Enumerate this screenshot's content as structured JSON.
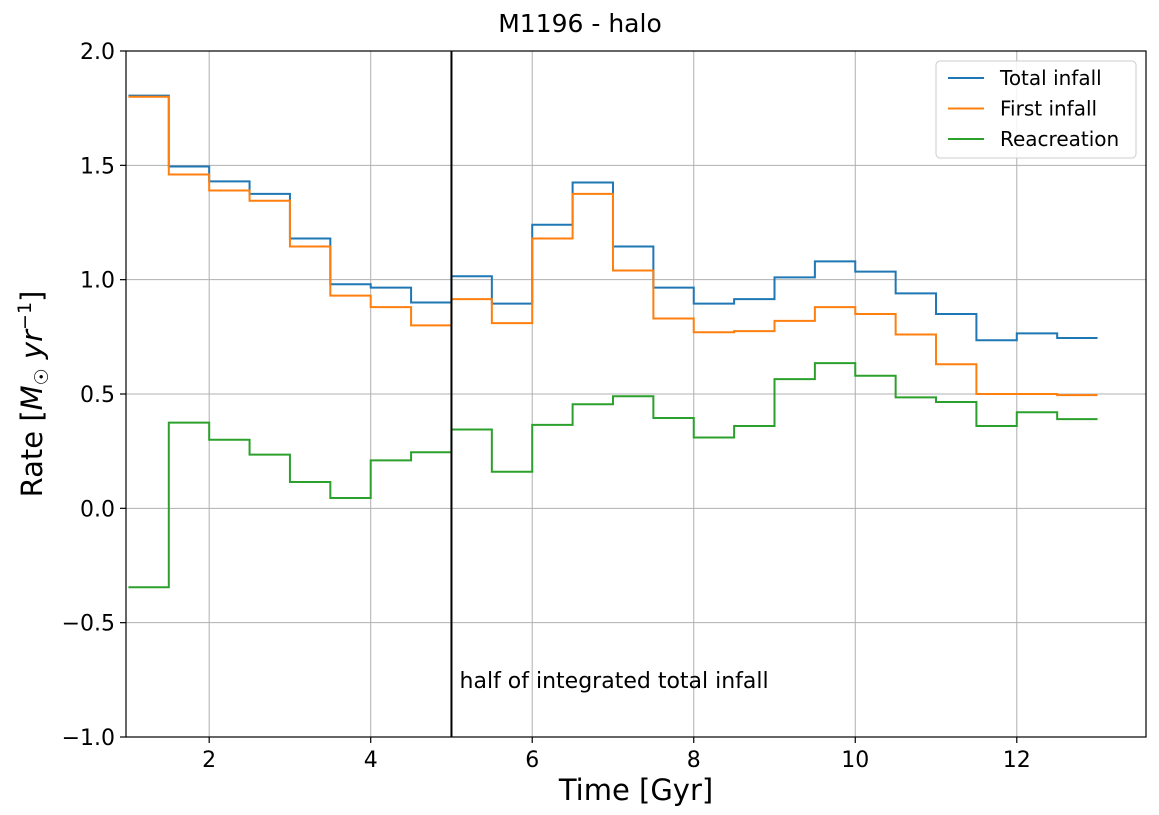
{
  "chart_data": {
    "type": "line",
    "step": "post",
    "title": "M1196 - halo",
    "xlabel": "Time [Gyr]",
    "ylabel": "Rate [M☉ yr⁻¹]",
    "ylabel_parts": {
      "prefix": "Rate [",
      "symbol": "M",
      "sub": "☉",
      "unit": " yr",
      "sup": "−1",
      "suffix": "]"
    },
    "xlim": [
      0.97,
      13.6
    ],
    "ylim": [
      -1.0,
      2.0
    ],
    "xticks": [
      2,
      4,
      6,
      8,
      10,
      12
    ],
    "xtick_labels": [
      "2",
      "4",
      "6",
      "8",
      "10",
      "12"
    ],
    "yticks": [
      -1.0,
      -0.5,
      0.0,
      0.5,
      1.0,
      1.5,
      2.0
    ],
    "ytick_labels": [
      "−1.0",
      "−0.5",
      "0.0",
      "0.5",
      "1.0",
      "1.5",
      "2.0"
    ],
    "grid": true,
    "legend_position": "top-right",
    "x": [
      1.0,
      1.5,
      2.0,
      2.5,
      3.0,
      3.5,
      4.0,
      4.5,
      5.0,
      5.5,
      6.0,
      6.5,
      7.0,
      7.5,
      8.0,
      8.5,
      9.0,
      9.5,
      10.0,
      10.5,
      11.0,
      11.5,
      12.0,
      12.5,
      13.0
    ],
    "series": [
      {
        "name": "Total infall",
        "color": "#1f77b4",
        "values": [
          1.805,
          1.495,
          1.43,
          1.375,
          1.18,
          0.98,
          0.965,
          0.9,
          1.015,
          0.895,
          1.24,
          1.425,
          1.145,
          0.965,
          0.895,
          0.915,
          1.01,
          1.08,
          1.035,
          0.94,
          0.85,
          0.735,
          0.765,
          0.745,
          0.745
        ]
      },
      {
        "name": "First infall",
        "color": "#ff7f0e",
        "values": [
          1.8,
          1.46,
          1.39,
          1.345,
          1.145,
          0.93,
          0.88,
          0.8,
          0.915,
          0.81,
          1.18,
          1.375,
          1.04,
          0.83,
          0.77,
          0.775,
          0.82,
          0.88,
          0.85,
          0.76,
          0.63,
          0.5,
          0.5,
          0.495,
          0.495
        ]
      },
      {
        "name": "Reacreation",
        "color": "#2ca02c",
        "values": [
          -0.345,
          0.375,
          0.3,
          0.235,
          0.115,
          0.045,
          0.21,
          0.245,
          0.345,
          0.16,
          0.365,
          0.455,
          0.49,
          0.395,
          0.31,
          0.36,
          0.565,
          0.635,
          0.58,
          0.485,
          0.465,
          0.36,
          0.42,
          0.39,
          0.39
        ]
      }
    ],
    "vline": {
      "x": 5.0,
      "color": "#000000"
    },
    "annotations": [
      {
        "text": "half of integrated total infall",
        "x": 5.1,
        "y": -0.75
      }
    ]
  }
}
